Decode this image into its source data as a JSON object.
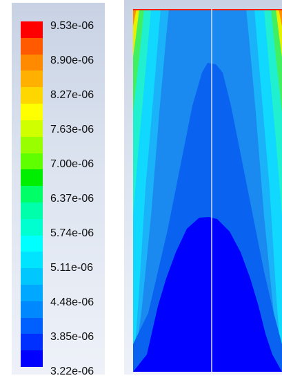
{
  "legend": {
    "levels": [
      "9.53e-06",
      "8.90e-06",
      "8.27e-06",
      "7.63e-06",
      "7.00e-06",
      "6.37e-06",
      "5.74e-06",
      "5.11e-06",
      "4.48e-06",
      "3.85e-06",
      "3.22e-06"
    ],
    "colors": [
      "#ff0000",
      "#ff5a00",
      "#ff8a00",
      "#ffb000",
      "#ffd700",
      "#ffff00",
      "#d0ff00",
      "#99ff00",
      "#60ff00",
      "#00ee00",
      "#00ff66",
      "#00ffaa",
      "#00ffd0",
      "#00ffff",
      "#00e4ff",
      "#00c8ff",
      "#00a8ff",
      "#0088ff",
      "#0060ff",
      "#0030ff",
      "#0000ff"
    ]
  },
  "contour": {
    "colors": {
      "deep_blue": "#0000ff",
      "blue": "#0a62f0",
      "mid_blue": "#1a8af0",
      "light_blue": "#1ab2f8",
      "cyan": "#10d8ff",
      "aqua": "#20f0d0",
      "green": "#40f060",
      "yellow": "#e8f000",
      "orange": "#ff9000",
      "red": "#ff2000",
      "centerline": "#d8e0f0"
    }
  }
}
